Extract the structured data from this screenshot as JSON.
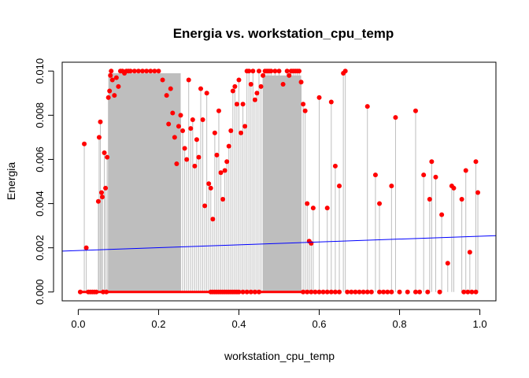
{
  "chart_data": {
    "type": "scatter",
    "title": "Energia vs. workstation_cpu_temp",
    "xlabel": "workstation_cpu_temp",
    "ylabel": "Energia",
    "xlim": [
      -0.04,
      1.04
    ],
    "ylim": [
      -0.0004,
      0.0104
    ],
    "x_ticks": [
      0.0,
      0.2,
      0.4,
      0.6,
      0.8,
      1.0
    ],
    "x_tick_labels": [
      "0.0",
      "0.2",
      "0.4",
      "0.6",
      "0.8",
      "1.0"
    ],
    "y_ticks": [
      0.0,
      0.002,
      0.004,
      0.006,
      0.008,
      0.01
    ],
    "y_tick_labels": [
      "0.000",
      "0.002",
      "0.004",
      "0.006",
      "0.008",
      "0.010"
    ],
    "grid": false,
    "point_color": "#ff0000",
    "stem_color": "#bebebe",
    "fill_color": "#bebebe",
    "trend_color": "#0000ff",
    "trend_line": {
      "x": [
        -0.04,
        1.04
      ],
      "y": [
        0.00185,
        0.00255
      ]
    },
    "dense_regions": [
      {
        "x": [
          0.075,
          0.255
        ],
        "y": 0.0099
      },
      {
        "x": [
          0.46,
          0.555
        ],
        "y": 0.0098
      }
    ],
    "points": [
      [
        0.005,
        0.0
      ],
      [
        0.015,
        0.0067
      ],
      [
        0.02,
        0.002
      ],
      [
        0.025,
        0.0
      ],
      [
        0.03,
        0.0
      ],
      [
        0.035,
        0.0
      ],
      [
        0.04,
        0.0
      ],
      [
        0.045,
        0.0
      ],
      [
        0.05,
        0.0041
      ],
      [
        0.052,
        0.007
      ],
      [
        0.055,
        0.0077
      ],
      [
        0.058,
        0.0045
      ],
      [
        0.06,
        0.0043
      ],
      [
        0.062,
        0.0
      ],
      [
        0.065,
        0.0063
      ],
      [
        0.068,
        0.0047
      ],
      [
        0.07,
        0.0
      ],
      [
        0.072,
        0.0061
      ],
      [
        0.075,
        0.0088
      ],
      [
        0.078,
        0.0091
      ],
      [
        0.08,
        0.0098
      ],
      [
        0.082,
        0.01
      ],
      [
        0.085,
        0.0096
      ],
      [
        0.09,
        0.0089
      ],
      [
        0.095,
        0.0097
      ],
      [
        0.1,
        0.0093
      ],
      [
        0.105,
        0.01
      ],
      [
        0.11,
        0.01
      ],
      [
        0.115,
        0.0099
      ],
      [
        0.12,
        0.01
      ],
      [
        0.125,
        0.01
      ],
      [
        0.13,
        0.01
      ],
      [
        0.14,
        0.01
      ],
      [
        0.15,
        0.01
      ],
      [
        0.16,
        0.01
      ],
      [
        0.17,
        0.01
      ],
      [
        0.18,
        0.01
      ],
      [
        0.19,
        0.01
      ],
      [
        0.2,
        0.01
      ],
      [
        0.21,
        0.0096
      ],
      [
        0.22,
        0.0089
      ],
      [
        0.225,
        0.0076
      ],
      [
        0.23,
        0.0092
      ],
      [
        0.235,
        0.0081
      ],
      [
        0.24,
        0.007
      ],
      [
        0.245,
        0.0058
      ],
      [
        0.25,
        0.0075
      ],
      [
        0.255,
        0.008
      ],
      [
        0.26,
        0.0073
      ],
      [
        0.265,
        0.0065
      ],
      [
        0.27,
        0.006
      ],
      [
        0.275,
        0.0096
      ],
      [
        0.28,
        0.0074
      ],
      [
        0.285,
        0.0078
      ],
      [
        0.29,
        0.0057
      ],
      [
        0.295,
        0.0069
      ],
      [
        0.3,
        0.0061
      ],
      [
        0.305,
        0.0092
      ],
      [
        0.31,
        0.0078
      ],
      [
        0.315,
        0.0039
      ],
      [
        0.32,
        0.009
      ],
      [
        0.325,
        0.0049
      ],
      [
        0.33,
        0.0047
      ],
      [
        0.335,
        0.0033
      ],
      [
        0.34,
        0.0072
      ],
      [
        0.345,
        0.0062
      ],
      [
        0.35,
        0.0082
      ],
      [
        0.355,
        0.0054
      ],
      [
        0.36,
        0.0042
      ],
      [
        0.365,
        0.0055
      ],
      [
        0.37,
        0.0059
      ],
      [
        0.375,
        0.0066
      ],
      [
        0.38,
        0.0073
      ],
      [
        0.385,
        0.0091
      ],
      [
        0.39,
        0.0093
      ],
      [
        0.395,
        0.0085
      ],
      [
        0.4,
        0.0096
      ],
      [
        0.405,
        0.0072
      ],
      [
        0.41,
        0.0085
      ],
      [
        0.415,
        0.0075
      ],
      [
        0.42,
        0.01
      ],
      [
        0.425,
        0.01
      ],
      [
        0.43,
        0.0094
      ],
      [
        0.435,
        0.01
      ],
      [
        0.44,
        0.0087
      ],
      [
        0.445,
        0.009
      ],
      [
        0.45,
        0.01
      ],
      [
        0.455,
        0.0093
      ],
      [
        0.46,
        0.0098
      ],
      [
        0.465,
        0.01
      ],
      [
        0.47,
        0.01
      ],
      [
        0.475,
        0.01
      ],
      [
        0.48,
        0.01
      ],
      [
        0.49,
        0.01
      ],
      [
        0.5,
        0.01
      ],
      [
        0.51,
        0.0094
      ],
      [
        0.52,
        0.01
      ],
      [
        0.525,
        0.0098
      ],
      [
        0.53,
        0.01
      ],
      [
        0.535,
        0.01
      ],
      [
        0.54,
        0.01
      ],
      [
        0.545,
        0.01
      ],
      [
        0.55,
        0.01
      ],
      [
        0.555,
        0.0095
      ],
      [
        0.56,
        0.0085
      ],
      [
        0.565,
        0.0082
      ],
      [
        0.57,
        0.004
      ],
      [
        0.575,
        0.0023
      ],
      [
        0.58,
        0.0022
      ],
      [
        0.585,
        0.0038
      ],
      [
        0.6,
        0.0088
      ],
      [
        0.62,
        0.0038
      ],
      [
        0.63,
        0.0086
      ],
      [
        0.64,
        0.0057
      ],
      [
        0.65,
        0.0048
      ],
      [
        0.66,
        0.0099
      ],
      [
        0.665,
        0.01
      ],
      [
        0.72,
        0.0084
      ],
      [
        0.74,
        0.0053
      ],
      [
        0.75,
        0.004
      ],
      [
        0.78,
        0.0048
      ],
      [
        0.79,
        0.0079
      ],
      [
        0.84,
        0.0082
      ],
      [
        0.86,
        0.0053
      ],
      [
        0.875,
        0.0042
      ],
      [
        0.88,
        0.0059
      ],
      [
        0.89,
        0.0052
      ],
      [
        0.905,
        0.0035
      ],
      [
        0.92,
        0.0013
      ],
      [
        0.93,
        0.0048
      ],
      [
        0.935,
        0.0047
      ],
      [
        0.955,
        0.0042
      ],
      [
        0.965,
        0.0055
      ],
      [
        0.975,
        0.0018
      ],
      [
        0.99,
        0.0059
      ],
      [
        0.995,
        0.0045
      ],
      [
        0.33,
        0.0
      ],
      [
        0.335,
        0.0
      ],
      [
        0.34,
        0.0
      ],
      [
        0.345,
        0.0
      ],
      [
        0.35,
        0.0
      ],
      [
        0.355,
        0.0
      ],
      [
        0.36,
        0.0
      ],
      [
        0.365,
        0.0
      ],
      [
        0.37,
        0.0
      ],
      [
        0.375,
        0.0
      ],
      [
        0.38,
        0.0
      ],
      [
        0.385,
        0.0
      ],
      [
        0.39,
        0.0
      ],
      [
        0.395,
        0.0
      ],
      [
        0.4,
        0.0
      ],
      [
        0.41,
        0.0
      ],
      [
        0.42,
        0.0
      ],
      [
        0.43,
        0.0
      ],
      [
        0.44,
        0.0
      ],
      [
        0.45,
        0.0
      ],
      [
        0.56,
        0.0
      ],
      [
        0.57,
        0.0
      ],
      [
        0.58,
        0.0
      ],
      [
        0.59,
        0.0
      ],
      [
        0.6,
        0.0
      ],
      [
        0.61,
        0.0
      ],
      [
        0.62,
        0.0
      ],
      [
        0.63,
        0.0
      ],
      [
        0.64,
        0.0
      ],
      [
        0.65,
        0.0
      ],
      [
        0.67,
        0.0
      ],
      [
        0.68,
        0.0
      ],
      [
        0.69,
        0.0
      ],
      [
        0.7,
        0.0
      ],
      [
        0.71,
        0.0
      ],
      [
        0.72,
        0.0
      ],
      [
        0.73,
        0.0
      ],
      [
        0.75,
        0.0
      ],
      [
        0.76,
        0.0
      ],
      [
        0.77,
        0.0
      ],
      [
        0.78,
        0.0
      ],
      [
        0.8,
        0.0
      ],
      [
        0.82,
        0.0
      ],
      [
        0.84,
        0.0
      ],
      [
        0.85,
        0.0
      ],
      [
        0.87,
        0.0
      ],
      [
        0.9,
        0.0
      ],
      [
        0.96,
        0.0
      ],
      [
        0.97,
        0.0
      ],
      [
        0.98,
        0.0
      ],
      [
        0.99,
        0.0
      ]
    ]
  }
}
